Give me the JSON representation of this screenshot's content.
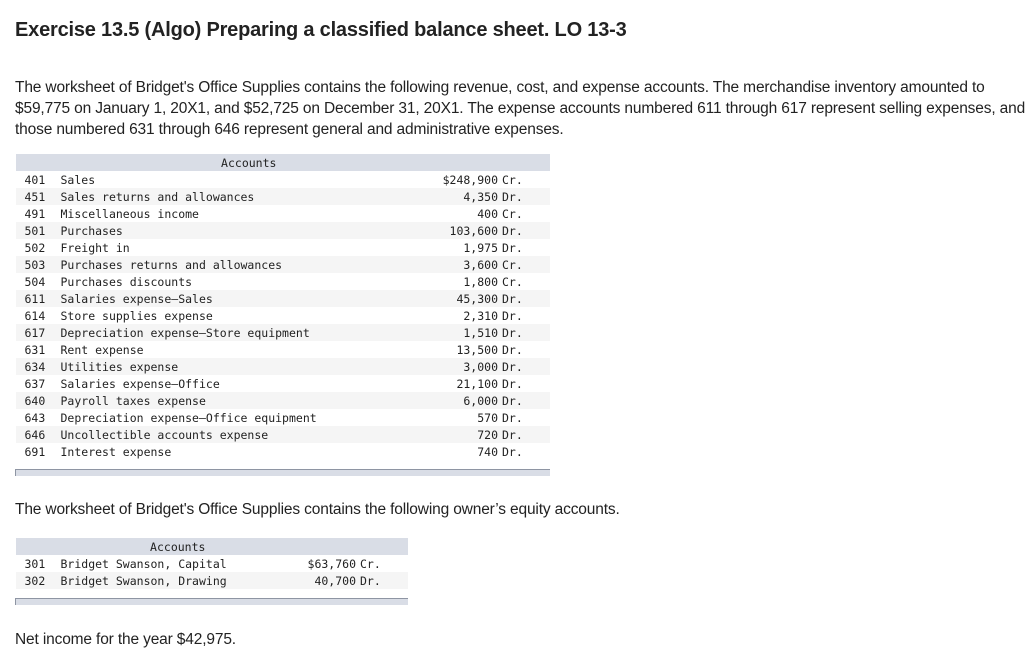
{
  "title": "Exercise 13.5 (Algo) Preparing a classified balance sheet. LO 13-3",
  "intro": "The worksheet of Bridget's Office Supplies contains the following revenue, cost, and expense accounts. The merchandise inventory amounted to $59,775 on January 1, 20X1, and $52,725 on December 31, 20X1. The expense accounts numbered 611 through 617 represent selling expenses, and those numbered 631 through 646 represent general and administrative expenses.",
  "table1": {
    "header": "Accounts",
    "rows": [
      {
        "num": "401",
        "name": "Sales",
        "amount": "$248,900",
        "side": "Cr."
      },
      {
        "num": "451",
        "name": "Sales returns and allowances",
        "amount": "4,350",
        "side": "Dr."
      },
      {
        "num": "491",
        "name": "Miscellaneous income",
        "amount": "400",
        "side": "Cr."
      },
      {
        "num": "501",
        "name": "Purchases",
        "amount": "103,600",
        "side": "Dr."
      },
      {
        "num": "502",
        "name": "Freight in",
        "amount": "1,975",
        "side": "Dr."
      },
      {
        "num": "503",
        "name": "Purchases returns and allowances",
        "amount": "3,600",
        "side": "Cr."
      },
      {
        "num": "504",
        "name": "Purchases discounts",
        "amount": "1,800",
        "side": "Cr."
      },
      {
        "num": "611",
        "name": "Salaries expense–Sales",
        "amount": "45,300",
        "side": "Dr."
      },
      {
        "num": "614",
        "name": "Store supplies expense",
        "amount": "2,310",
        "side": "Dr."
      },
      {
        "num": "617",
        "name": "Depreciation expense–Store equipment",
        "amount": "1,510",
        "side": "Dr."
      },
      {
        "num": "631",
        "name": "Rent expense",
        "amount": "13,500",
        "side": "Dr."
      },
      {
        "num": "634",
        "name": "Utilities expense",
        "amount": "3,000",
        "side": "Dr."
      },
      {
        "num": "637",
        "name": "Salaries expense–Office",
        "amount": "21,100",
        "side": "Dr."
      },
      {
        "num": "640",
        "name": "Payroll taxes expense",
        "amount": "6,000",
        "side": "Dr."
      },
      {
        "num": "643",
        "name": "Depreciation expense–Office equipment",
        "amount": "570",
        "side": "Dr."
      },
      {
        "num": "646",
        "name": "Uncollectible accounts expense",
        "amount": "720",
        "side": "Dr."
      },
      {
        "num": "691",
        "name": "Interest expense",
        "amount": "740",
        "side": "Dr."
      }
    ]
  },
  "equity_intro": "The worksheet of Bridget's Office Supplies contains the following owner’s equity accounts.",
  "table2": {
    "header": "Accounts",
    "rows": [
      {
        "num": "301",
        "name": "Bridget Swanson, Capital",
        "amount": "$63,760",
        "side": "Cr."
      },
      {
        "num": "302",
        "name": "Bridget Swanson, Drawing",
        "amount": "40,700",
        "side": "Dr."
      }
    ]
  },
  "net_income": "Net income for the year $42,975.",
  "colors": {
    "header_bg": "#d9dde6",
    "row_alt_bg": "#f5f5f5",
    "text": "#222222"
  }
}
